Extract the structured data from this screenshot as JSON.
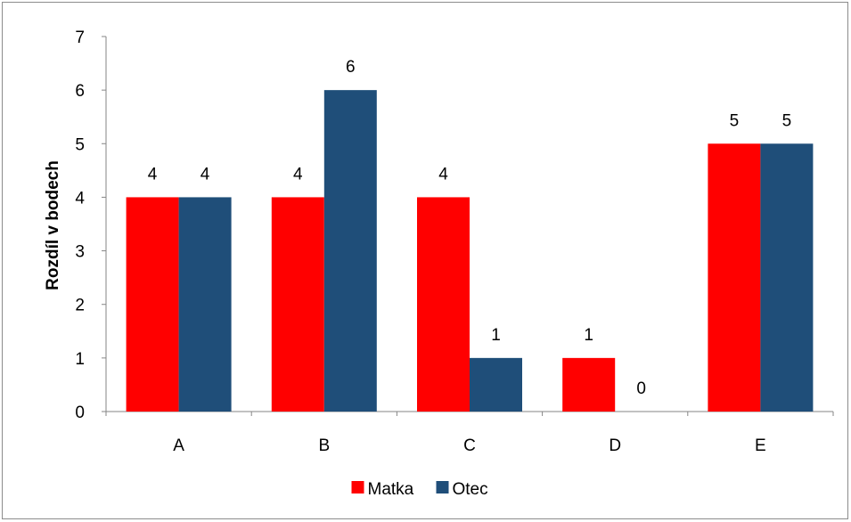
{
  "chart_data": {
    "type": "bar",
    "title": "",
    "xlabel": "",
    "ylabel": "Rozdíl v bodech",
    "categories": [
      "A",
      "B",
      "C",
      "D",
      "E"
    ],
    "ylim": [
      0,
      7
    ],
    "yticks": [
      "0",
      "1",
      "2",
      "3",
      "4",
      "5",
      "6",
      "7"
    ],
    "grid": false,
    "legend_position": "bottom",
    "series": [
      {
        "name": "Matka",
        "color": "#ff0000",
        "values": [
          4,
          4,
          4,
          1,
          5
        ]
      },
      {
        "name": "Otec",
        "color": "#1f4e79",
        "values": [
          4,
          6,
          1,
          0,
          5
        ]
      }
    ]
  }
}
